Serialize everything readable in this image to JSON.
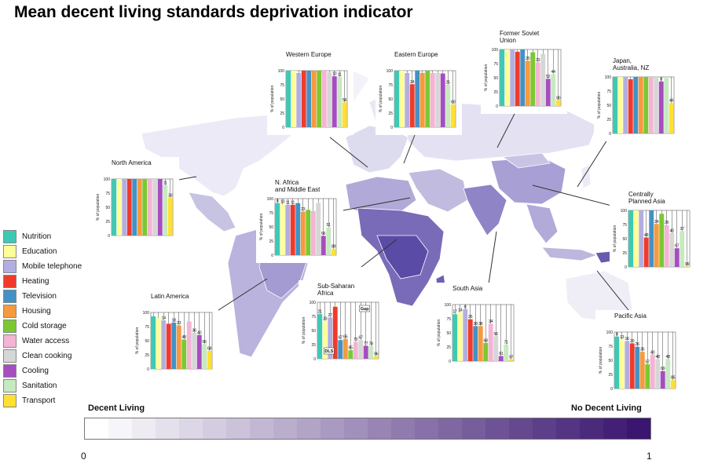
{
  "title": "Mean decent living standards deprivation indicator",
  "legend": [
    {
      "label": "Nutrition",
      "color": "#3ec9b4"
    },
    {
      "label": "Education",
      "color": "#ffff99"
    },
    {
      "label": "Mobile telephone",
      "color": "#b3aee0"
    },
    {
      "label": "Heating",
      "color": "#ef3b2c"
    },
    {
      "label": "Television",
      "color": "#4292c6"
    },
    {
      "label": "Housing",
      "color": "#f59a3e"
    },
    {
      "label": "Cold storage",
      "color": "#7cc832"
    },
    {
      "label": "Water access",
      "color": "#f4b4d4"
    },
    {
      "label": "Clean cooking",
      "color": "#d6d6d6"
    },
    {
      "label": "Cooling",
      "color": "#a64dbf"
    },
    {
      "label": "Sanitation",
      "color": "#c7e9c0"
    },
    {
      "label": "Transport",
      "color": "#ffe033"
    }
  ],
  "scale": {
    "left_label": "Decent Living",
    "right_label": "No Decent Living",
    "min_label": "0",
    "max_label": "1",
    "color_low": "#ffffff",
    "color_high": "#3a1670"
  },
  "chart_data": [
    {
      "type": "bar",
      "region": "North America",
      "title": [
        "North America"
      ],
      "ylabel": "% of population",
      "yticks": [
        "0",
        "25",
        "50",
        "75",
        "100"
      ],
      "ylim": [
        0,
        100
      ],
      "values": [
        100,
        100,
        100,
        100,
        100,
        100,
        100,
        100,
        100,
        100,
        89,
        67
      ],
      "value_labels": [
        "",
        "",
        "",
        "",
        "",
        "",
        "",
        "",
        "",
        "",
        "11",
        "33"
      ]
    },
    {
      "type": "bar",
      "region": "Western Europe",
      "title": [
        "Western Europe"
      ],
      "ylabel": "% of population",
      "yticks": [
        "0",
        "25",
        "50",
        "75",
        "100"
      ],
      "ylim": [
        0,
        100
      ],
      "values": [
        100,
        100,
        96,
        100,
        100,
        100,
        100,
        100,
        97,
        90,
        89,
        44
      ],
      "value_labels": [
        "",
        "",
        "",
        "",
        "",
        "",
        "",
        "",
        "",
        "10",
        "11",
        "56"
      ]
    },
    {
      "type": "bar",
      "region": "Eastern Europe",
      "title": [
        "Eastern Europe"
      ],
      "ylabel": "% of population",
      "yticks": [
        "0",
        "25",
        "50",
        "75",
        "100"
      ],
      "ylim": [
        0,
        100
      ],
      "values": [
        100,
        100,
        96,
        76,
        100,
        96,
        100,
        96,
        96,
        95,
        75,
        40
      ],
      "value_labels": [
        "",
        "",
        "",
        "24",
        "",
        "",
        "",
        "",
        "",
        "",
        "25",
        "60"
      ]
    },
    {
      "type": "bar",
      "region": "Former Soviet Union",
      "title": [
        "Former Soviet",
        "Union"
      ],
      "ylabel": "% of population",
      "yticks": [
        "0",
        "25",
        "50",
        "75",
        "100"
      ],
      "ylim": [
        0,
        100
      ],
      "values": [
        100,
        100,
        100,
        96,
        100,
        80,
        95,
        77,
        92,
        48,
        56,
        10
      ],
      "value_labels": [
        "",
        "",
        "",
        "",
        "",
        "20",
        "",
        "23",
        "",
        "52",
        "44",
        "90"
      ]
    },
    {
      "type": "bar",
      "region": "Japan, Australia, NZ",
      "title": [
        "Japan,",
        "Australia, NZ"
      ],
      "ylabel": "% of population",
      "yticks": [
        "0",
        "25",
        "50",
        "75",
        "100"
      ],
      "ylim": [
        0,
        100
      ],
      "values": [
        100,
        100,
        100,
        96,
        100,
        100,
        100,
        100,
        100,
        92,
        100,
        54
      ],
      "value_labels": [
        "",
        "",
        "",
        "",
        "",
        "",
        "",
        "",
        "",
        "8",
        "",
        "46"
      ]
    },
    {
      "type": "bar",
      "region": "N. Africa and Middle East",
      "title": [
        "N. Africa",
        "and Middle East"
      ],
      "ylabel": "% of population",
      "yticks": [
        "0",
        "25",
        "50",
        "75",
        "100"
      ],
      "ylim": [
        0,
        100
      ],
      "values": [
        92,
        90,
        89,
        89,
        92,
        77,
        80,
        78,
        92,
        34,
        49,
        11
      ],
      "value_labels": [
        "8",
        "10",
        "11",
        "11",
        "",
        "23",
        "",
        "",
        "",
        "66",
        "51",
        "89"
      ]
    },
    {
      "type": "bar",
      "region": "Centrally Planned Asia",
      "title": [
        "Centrally",
        "Planned Asia"
      ],
      "ylabel": "% of population",
      "yticks": [
        "0",
        "25",
        "50",
        "75",
        "100"
      ],
      "ylim": [
        0,
        100
      ],
      "values": [
        100,
        100,
        100,
        52,
        100,
        76,
        94,
        74,
        60,
        33,
        63,
        1
      ],
      "value_labels": [
        "",
        "",
        "",
        "48",
        "",
        "24",
        "",
        "26",
        "40",
        "67",
        "37",
        "99"
      ]
    },
    {
      "type": "bar",
      "region": "Latin America",
      "title": [
        "Latin America"
      ],
      "ylabel": "% of population",
      "yticks": [
        "0",
        "25",
        "50",
        "75",
        "100"
      ],
      "ylim": [
        0,
        100
      ],
      "values": [
        93,
        90,
        86,
        80,
        82,
        77,
        52,
        84,
        64,
        60,
        44,
        32
      ],
      "value_labels": [
        "",
        "",
        "14",
        "",
        "18",
        "23",
        "48",
        "",
        "36",
        "40",
        "56",
        "68"
      ]
    },
    {
      "type": "bar",
      "region": "Sub-Saharan Africa",
      "title": [
        "Sub-Saharan",
        "Africa"
      ],
      "ylabel": "% of population",
      "yticks": [
        "0",
        "25",
        "50",
        "75",
        "100"
      ],
      "ylim": [
        0,
        100
      ],
      "values": [
        79,
        67,
        73,
        92,
        33,
        35,
        15,
        30,
        33,
        23,
        22,
        4
      ],
      "value_labels": [
        "21",
        "33",
        "27",
        "",
        "67",
        "65",
        "85",
        "70",
        "67",
        "77",
        "78",
        "96"
      ],
      "annotations": [
        "Gap",
        "DLS"
      ]
    },
    {
      "type": "bar",
      "region": "South Asia",
      "title": [
        "South Asia"
      ],
      "ylabel": "% of population",
      "yticks": [
        "0",
        "25",
        "50",
        "75",
        "100"
      ],
      "ylim": [
        0,
        100
      ],
      "values": [
        83,
        86,
        92,
        74,
        62,
        62,
        32,
        66,
        44,
        9,
        29,
        3
      ],
      "value_labels": [
        "17",
        "14",
        "8",
        "26",
        "38",
        "38",
        "68",
        "34",
        "56",
        "91",
        "71",
        "97"
      ]
    },
    {
      "type": "bar",
      "region": "Pacific Asia",
      "title": [
        "Pacific Asia"
      ],
      "ylabel": "% of population",
      "yticks": [
        "0",
        "25",
        "50",
        "75",
        "100"
      ],
      "ylim": [
        0,
        100
      ],
      "values": [
        92,
        87,
        84,
        80,
        74,
        65,
        43,
        60,
        52,
        31,
        52,
        15
      ],
      "value_labels": [
        "8",
        "13",
        "16",
        "20",
        "26",
        "35",
        "57",
        "40",
        "48",
        "69",
        "48",
        "85"
      ]
    }
  ]
}
